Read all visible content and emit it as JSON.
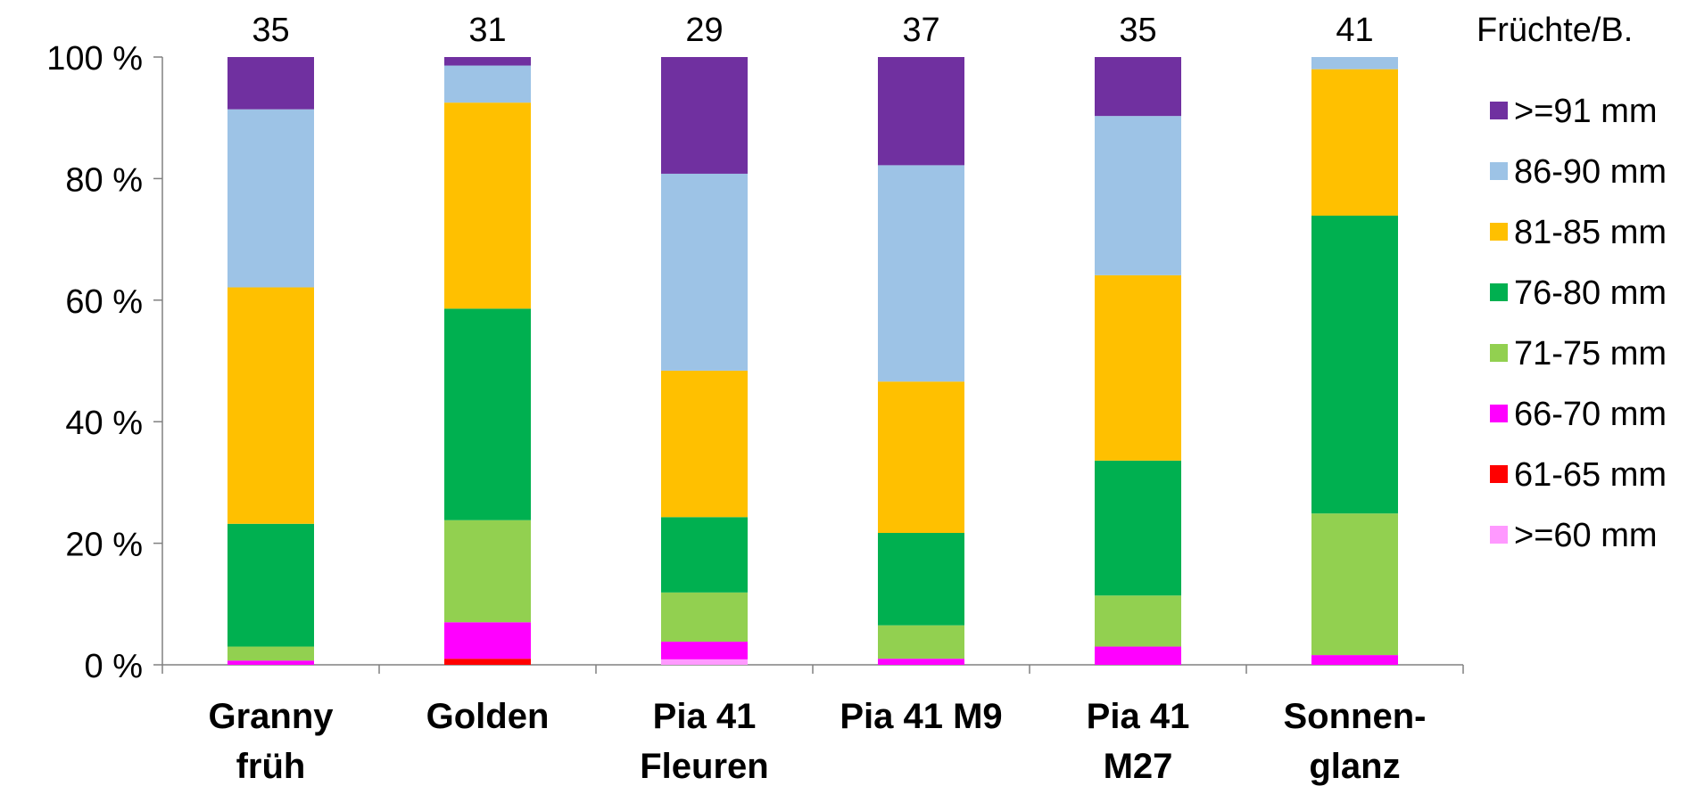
{
  "chart_data": {
    "type": "bar",
    "stacked": "percent",
    "categories": [
      [
        "Granny",
        "früh"
      ],
      [
        "Golden"
      ],
      [
        "Pia 41",
        "Fleuren"
      ],
      [
        "Pia 41 M9"
      ],
      [
        "Pia 41",
        "M27"
      ],
      [
        "Sonnen-",
        "glanz"
      ]
    ],
    "counts": [
      "35",
      "31",
      "29",
      "37",
      "35",
      "41"
    ],
    "counts_label": "Früchte/B.",
    "ylim": [
      0,
      100
    ],
    "yticks": [
      0,
      20,
      40,
      60,
      80,
      100
    ],
    "ytick_labels": [
      "0 %",
      "20 %",
      "40 %",
      "60 %",
      "80 %",
      "100 %"
    ],
    "grid": false,
    "legend_position": "right",
    "series": [
      {
        "name": ">=60 mm",
        "color": "#ff99ff",
        "values": [
          0.0,
          0.0,
          0.9,
          0.0,
          0.0,
          0.0
        ]
      },
      {
        "name": "61-65 mm",
        "color": "#ff0000",
        "values": [
          0.0,
          1.0,
          0.0,
          0.0,
          0.0,
          0.0
        ]
      },
      {
        "name": "66-70 mm",
        "color": "#ff00ff",
        "values": [
          0.7,
          6.0,
          2.9,
          1.0,
          3.0,
          1.6
        ]
      },
      {
        "name": "71-75 mm",
        "color": "#92d050",
        "values": [
          2.3,
          16.8,
          8.1,
          5.5,
          8.4,
          23.3
        ]
      },
      {
        "name": "76-80 mm",
        "color": "#00b050",
        "values": [
          20.2,
          34.8,
          12.4,
          15.2,
          22.2,
          49.0
        ]
      },
      {
        "name": "81-85 mm",
        "color": "#ffc000",
        "values": [
          38.9,
          33.9,
          24.1,
          24.9,
          30.5,
          24.1
        ]
      },
      {
        "name": "86-90 mm",
        "color": "#9dc3e6",
        "values": [
          29.3,
          6.1,
          32.4,
          35.6,
          26.2,
          2.0
        ]
      },
      {
        "name": ">=91 mm",
        "color": "#7030a0",
        "values": [
          8.6,
          1.4,
          19.2,
          17.8,
          9.7,
          0.0
        ]
      }
    ]
  }
}
